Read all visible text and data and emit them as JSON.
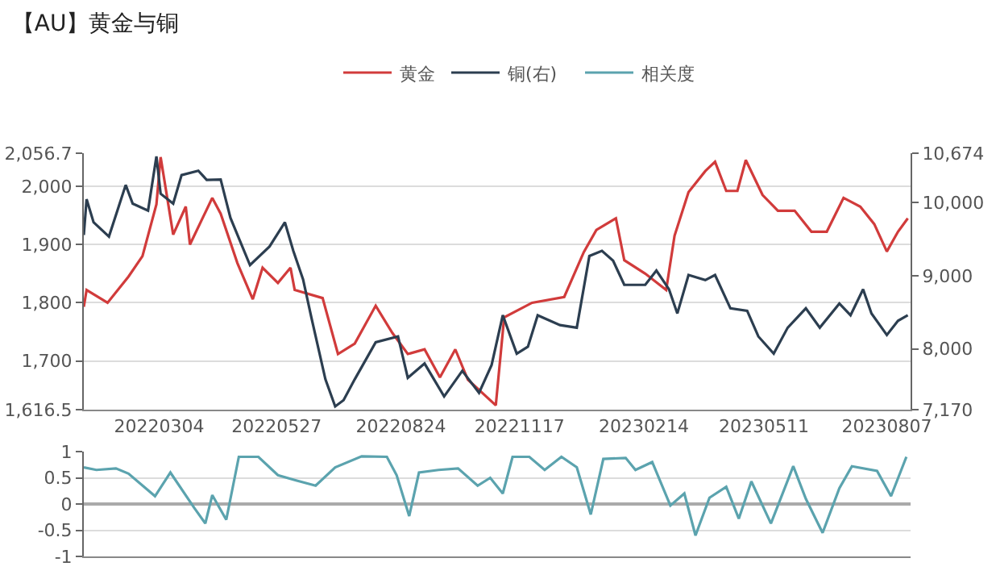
{
  "chart_data": [
    {
      "type": "line",
      "title": "【AU】黄金与铜",
      "legend": "top",
      "grid": "y",
      "marker": "none",
      "line_style": "solid",
      "xlim": [
        "2022-01-09",
        "2023-08-24"
      ],
      "xticks": [
        {
          "value": "2022-03-04",
          "label": "20220304"
        },
        {
          "value": "2022-05-27",
          "label": "20220527"
        },
        {
          "value": "2022-08-24",
          "label": "20220824"
        },
        {
          "value": "2022-11-17",
          "label": "20221117"
        },
        {
          "value": "2023-02-14",
          "label": "20230214"
        },
        {
          "value": "2023-05-11",
          "label": "20230511"
        },
        {
          "value": "2023-08-07",
          "label": "20230807"
        }
      ],
      "ylim": [
        1616.5,
        2056.7
      ],
      "yticks": [
        {
          "value": 1616.5,
          "label": "1,616.5"
        },
        {
          "value": 1700,
          "label": "1,700"
        },
        {
          "value": 1800,
          "label": "1,800"
        },
        {
          "value": 1900,
          "label": "1,900"
        },
        {
          "value": 2000,
          "label": "2,000"
        },
        {
          "value": 2056.7,
          "label": "2,056.7"
        }
      ],
      "y2lim": [
        7170,
        10674
      ],
      "y2ticks": [
        {
          "value": 7170,
          "label": "7,170"
        },
        {
          "value": 8000,
          "label": "8,000"
        },
        {
          "value": 9000,
          "label": "9,000"
        },
        {
          "value": 10000,
          "label": "10,000"
        },
        {
          "value": 10674,
          "label": "10,674"
        }
      ],
      "series": [
        {
          "name": "黄金",
          "color": "#d13b3b",
          "x": [
            "2022-01-09",
            "2022-01-11",
            "2022-01-26",
            "2022-02-10",
            "2022-02-20",
            "2022-03-02",
            "2022-03-05",
            "2022-03-14",
            "2022-03-23",
            "2022-03-26",
            "2022-04-11",
            "2022-04-17",
            "2022-04-29",
            "2022-05-10",
            "2022-05-17",
            "2022-05-28",
            "2022-06-06",
            "2022-06-09",
            "2022-06-29",
            "2022-07-10",
            "2022-07-22",
            "2022-08-06",
            "2022-08-18",
            "2022-08-29",
            "2022-09-10",
            "2022-09-21",
            "2022-10-02",
            "2022-10-11",
            "2022-10-31",
            "2022-11-06",
            "2022-11-26",
            "2022-12-19",
            "2023-01-02",
            "2023-01-11",
            "2023-01-25",
            "2023-01-31",
            "2023-02-15",
            "2023-03-02",
            "2023-03-08",
            "2023-03-18",
            "2023-03-30",
            "2023-04-06",
            "2023-04-14",
            "2023-04-22",
            "2023-04-28",
            "2023-05-10",
            "2023-05-21",
            "2023-06-02",
            "2023-06-14",
            "2023-06-25",
            "2023-07-07",
            "2023-07-19",
            "2023-07-29",
            "2023-08-07",
            "2023-08-15",
            "2023-08-22"
          ],
          "values": [
            1793,
            1822,
            1800,
            1845,
            1880,
            1969,
            2050,
            1917,
            1965,
            1900,
            1980,
            1953,
            1868,
            1806,
            1860,
            1834,
            1860,
            1822,
            1808,
            1712,
            1730,
            1795,
            1748,
            1712,
            1720,
            1672,
            1720,
            1668,
            1624,
            1775,
            1800,
            1810,
            1887,
            1925,
            1945,
            1873,
            1850,
            1822,
            1915,
            1990,
            2026,
            2042,
            1992,
            1992,
            2045,
            1985,
            1958,
            1958,
            1922,
            1922,
            1980,
            1965,
            1935,
            1888,
            1922,
            1945
          ]
        },
        {
          "name": "铜(右)",
          "color": "#2c3e50",
          "axis": "y2",
          "x": [
            "2022-01-09",
            "2022-01-11",
            "2022-01-16",
            "2022-01-27",
            "2022-02-08",
            "2022-02-13",
            "2022-02-24",
            "2022-03-02",
            "2022-03-05",
            "2022-03-14",
            "2022-03-20",
            "2022-04-01",
            "2022-04-07",
            "2022-04-17",
            "2022-04-24",
            "2022-05-08",
            "2022-05-22",
            "2022-06-02",
            "2022-06-08",
            "2022-06-15",
            "2022-06-21",
            "2022-07-01",
            "2022-07-08",
            "2022-07-14",
            "2022-07-22",
            "2022-08-06",
            "2022-08-22",
            "2022-08-29",
            "2022-09-10",
            "2022-09-24",
            "2022-10-07",
            "2022-10-19",
            "2022-10-28",
            "2022-11-05",
            "2022-11-15",
            "2022-11-23",
            "2022-11-30",
            "2022-12-16",
            "2022-12-28",
            "2023-01-06",
            "2023-01-15",
            "2023-01-23",
            "2023-01-31",
            "2023-02-15",
            "2023-02-23",
            "2023-03-04",
            "2023-03-10",
            "2023-03-18",
            "2023-03-30",
            "2023-04-06",
            "2023-04-17",
            "2023-04-29",
            "2023-05-07",
            "2023-05-18",
            "2023-05-28",
            "2023-06-10",
            "2023-06-20",
            "2023-07-04",
            "2023-07-12",
            "2023-07-21",
            "2023-07-27",
            "2023-08-07",
            "2023-08-15",
            "2023-08-22"
          ],
          "values": [
            9557,
            10045,
            9730,
            9535,
            10240,
            9985,
            9890,
            10630,
            10120,
            9985,
            10375,
            10435,
            10310,
            10315,
            9790,
            9145,
            9400,
            9730,
            9340,
            8950,
            8425,
            7585,
            7215,
            7300,
            7585,
            8090,
            8170,
            7605,
            7800,
            7350,
            7700,
            7400,
            7780,
            8460,
            7935,
            8030,
            8460,
            8325,
            8290,
            9270,
            9340,
            9205,
            8875,
            8875,
            9070,
            8815,
            8485,
            9010,
            8940,
            9010,
            8555,
            8520,
            8170,
            7935,
            8290,
            8555,
            8290,
            8620,
            8460,
            8815,
            8485,
            8190,
            8385,
            8460
          ]
        }
      ]
    },
    {
      "type": "line",
      "legend": "top",
      "grid": "y",
      "marker": "none",
      "line_style": "solid",
      "tick_labels": "y",
      "xlim": [
        "2022-01-09",
        "2023-08-24"
      ],
      "ylim": [
        -1,
        1
      ],
      "yticks": [
        -1,
        -0.5,
        0,
        0.5,
        1
      ],
      "series": [
        {
          "name": "相关度",
          "color": "#5ba3ae",
          "x": [
            "2022-01-09",
            "2022-01-18",
            "2022-02-01",
            "2022-02-10",
            "2022-03-01",
            "2022-03-12",
            "2022-03-29",
            "2022-04-06",
            "2022-04-11",
            "2022-04-21",
            "2022-04-30",
            "2022-05-14",
            "2022-05-28",
            "2022-06-10",
            "2022-06-24",
            "2022-07-08",
            "2022-07-27",
            "2022-08-14",
            "2022-08-21",
            "2022-08-30",
            "2022-09-06",
            "2022-09-20",
            "2022-10-04",
            "2022-10-18",
            "2022-10-27",
            "2022-11-05",
            "2022-11-12",
            "2022-11-24",
            "2022-12-05",
            "2022-12-17",
            "2022-12-28",
            "2023-01-07",
            "2023-01-16",
            "2023-02-01",
            "2023-02-08",
            "2023-02-20",
            "2023-03-05",
            "2023-03-15",
            "2023-03-23",
            "2023-04-02",
            "2023-04-14",
            "2023-04-23",
            "2023-05-02",
            "2023-05-16",
            "2023-06-01",
            "2023-06-10",
            "2023-06-22",
            "2023-07-04",
            "2023-07-13",
            "2023-07-31",
            "2023-08-10",
            "2023-08-21"
          ],
          "values": [
            0.7,
            0.65,
            0.68,
            0.58,
            0.15,
            0.6,
            -0.07,
            -0.37,
            0.17,
            -0.3,
            0.9,
            0.9,
            0.55,
            0.45,
            0.35,
            0.7,
            0.91,
            0.9,
            0.55,
            -0.23,
            0.6,
            0.65,
            0.68,
            0.35,
            0.5,
            0.2,
            0.9,
            0.9,
            0.65,
            0.9,
            0.7,
            -0.2,
            0.86,
            0.88,
            0.65,
            0.8,
            -0.03,
            0.2,
            -0.6,
            0.12,
            0.33,
            -0.28,
            0.43,
            -0.37,
            0.72,
            0.1,
            -0.55,
            0.3,
            0.72,
            0.63,
            0.15,
            0.9
          ]
        }
      ]
    }
  ]
}
